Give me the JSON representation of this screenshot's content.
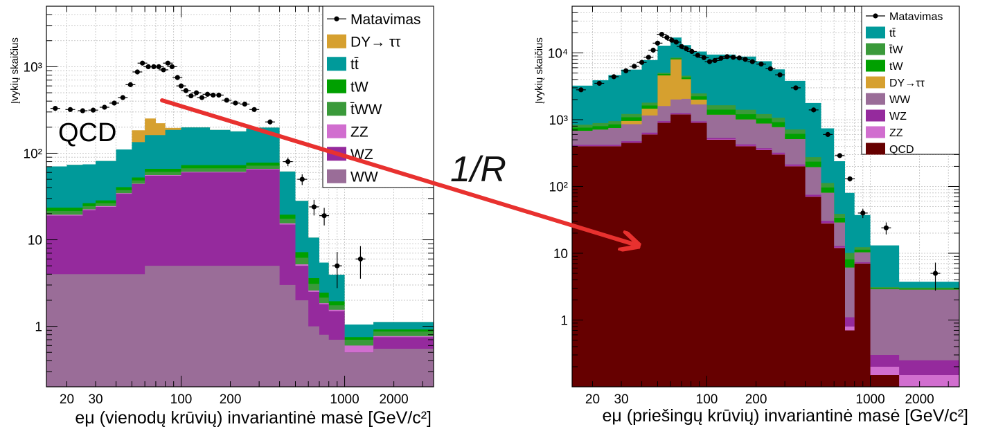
{
  "annotation": {
    "ratio_label": "1/R"
  },
  "chart_data": [
    {
      "type": "area",
      "stacked": true,
      "scale": {
        "x": "log",
        "y": "log"
      },
      "xlim": [
        15,
        3500
      ],
      "ylim": [
        0.2,
        5000
      ],
      "grid": true,
      "xlabel": "eμ (vienodų krūvių) invariantinė masė [GeV/c²]",
      "ylabel": "Įvykių skaičius",
      "xtick_labels": [
        "20",
        "30",
        "100",
        "200",
        "1000",
        "2000"
      ],
      "xtick_values": [
        20,
        30,
        100,
        200,
        1000,
        2000
      ],
      "ytick_labels": [
        "1",
        "10",
        "10²",
        "10³"
      ],
      "ytick_values": [
        1,
        10,
        100,
        1000
      ],
      "legend_position": "top-right",
      "inner_label": "QCD",
      "bin_edges": [
        15,
        20,
        25,
        30,
        40,
        50,
        60,
        70,
        80,
        100,
        150,
        200,
        250,
        300,
        400,
        500,
        600,
        700,
        800,
        1000,
        1500,
        3500
      ],
      "legend": [
        {
          "label": "Matavimas",
          "kind": "marker"
        },
        {
          "label": "DY→ ττ",
          "series": "DY→ττ"
        },
        {
          "label": "tt̄",
          "series": "tt̄"
        },
        {
          "label": "tW",
          "series": "tW"
        },
        {
          "label": "t̄WW",
          "series": "t̄WW"
        },
        {
          "label": "ZZ",
          "series": "ZZ"
        },
        {
          "label": "WZ",
          "series": "WZ"
        },
        {
          "label": "WW",
          "series": "WW"
        }
      ],
      "series": [
        {
          "name": "WW",
          "color": "#9a6d98",
          "values": [
            4,
            4,
            4,
            4,
            4,
            4,
            5,
            5,
            5,
            5,
            5,
            5,
            5,
            5,
            3,
            2,
            1,
            0.8,
            0.7,
            0.5,
            0.55
          ]
        },
        {
          "name": "WZ",
          "color": "#952a9d",
          "values": [
            15,
            15,
            18,
            20,
            30,
            40,
            50,
            50,
            50,
            55,
            55,
            55,
            60,
            60,
            12,
            3,
            1.5,
            1,
            0.8,
            0,
            0.2
          ]
        },
        {
          "name": "ZZ",
          "color": "#d16ecf",
          "values": [
            0.5,
            0.5,
            0.5,
            0.5,
            0.5,
            0.5,
            1,
            1,
            1,
            1,
            1,
            1,
            1,
            1,
            0.5,
            0.2,
            0.1,
            0.05,
            0.05,
            0.1,
            0.02
          ]
        },
        {
          "name": "t̄WW",
          "color": "#3a9a3a",
          "values": [
            2,
            2,
            2,
            2,
            3,
            4,
            5,
            5,
            5,
            6,
            6,
            6,
            6,
            6,
            2,
            1,
            0.5,
            0.3,
            0.2,
            0.1,
            0.1
          ]
        },
        {
          "name": "tW",
          "color": "#00a000",
          "values": [
            2,
            2,
            2,
            2,
            3,
            4,
            5,
            5,
            5,
            6,
            6,
            6,
            6,
            6,
            2,
            1,
            0.5,
            0.3,
            0.2,
            0.05,
            0.05
          ]
        },
        {
          "name": "tt̄",
          "color": "#009a9a",
          "values": [
            47,
            50,
            48,
            53,
            70,
            82,
            96,
            96,
            120,
            126,
            113,
            106,
            115,
            120,
            42,
            21,
            7,
            3,
            2,
            0.3,
            0.2
          ]
        },
        {
          "name": "DY→ττ",
          "color": "#d6a02f",
          "values": [
            0,
            0,
            0,
            0,
            0,
            50,
            90,
            60,
            10,
            0,
            0,
            0,
            0,
            0,
            0,
            0,
            0,
            0,
            0,
            0,
            0
          ]
        }
      ],
      "points": [
        {
          "x": 17,
          "y": 330
        },
        {
          "x": 21,
          "y": 320
        },
        {
          "x": 25,
          "y": 310
        },
        {
          "x": 29,
          "y": 315
        },
        {
          "x": 34,
          "y": 340
        },
        {
          "x": 39,
          "y": 380
        },
        {
          "x": 44,
          "y": 440
        },
        {
          "x": 49,
          "y": 620
        },
        {
          "x": 54,
          "y": 870
        },
        {
          "x": 58,
          "y": 1100
        },
        {
          "x": 63,
          "y": 1000
        },
        {
          "x": 68,
          "y": 1000
        },
        {
          "x": 73,
          "y": 1000
        },
        {
          "x": 78,
          "y": 920
        },
        {
          "x": 83,
          "y": 1100
        },
        {
          "x": 88,
          "y": 1000
        },
        {
          "x": 95,
          "y": 750
        },
        {
          "x": 100,
          "y": 600
        },
        {
          "x": 107,
          "y": 530
        },
        {
          "x": 115,
          "y": 460
        },
        {
          "x": 124,
          "y": 500
        },
        {
          "x": 134,
          "y": 440
        },
        {
          "x": 145,
          "y": 480
        },
        {
          "x": 157,
          "y": 470
        },
        {
          "x": 170,
          "y": 470
        },
        {
          "x": 190,
          "y": 410
        },
        {
          "x": 215,
          "y": 380
        },
        {
          "x": 245,
          "y": 370
        },
        {
          "x": 280,
          "y": 320
        },
        {
          "x": 350,
          "y": 230
        },
        {
          "x": 450,
          "y": 80
        },
        {
          "x": 550,
          "y": 50
        },
        {
          "x": 650,
          "y": 24
        },
        {
          "x": 750,
          "y": 19
        },
        {
          "x": 900,
          "y": 5
        },
        {
          "x": 1250,
          "y": 6
        }
      ]
    },
    {
      "type": "area",
      "stacked": true,
      "scale": {
        "x": "log",
        "y": "log"
      },
      "xlim": [
        15,
        3500
      ],
      "ylim": [
        0.1,
        50000
      ],
      "grid": true,
      "xlabel": "eμ (priešingų krūvių) invariantinė masė [GeV/c²]",
      "ylabel": "Įvykių skaičius",
      "xtick_labels": [
        "20",
        "30",
        "100",
        "200",
        "1000",
        "2000"
      ],
      "xtick_values": [
        20,
        30,
        100,
        200,
        1000,
        2000
      ],
      "ytick_labels": [
        "1",
        "10",
        "10²",
        "10³",
        "10⁴"
      ],
      "ytick_values": [
        1,
        10,
        100,
        1000,
        10000
      ],
      "legend_position": "top-right",
      "bin_edges": [
        15,
        20,
        25,
        30,
        40,
        50,
        60,
        70,
        80,
        100,
        150,
        200,
        250,
        300,
        400,
        500,
        600,
        700,
        800,
        1000,
        1500,
        3500
      ],
      "legend": [
        {
          "label": "Matavimas",
          "kind": "marker"
        },
        {
          "label": "tt̄",
          "series": "tt̄"
        },
        {
          "label": "t̄W",
          "series": "t̄W"
        },
        {
          "label": "tW",
          "series": "tW"
        },
        {
          "label": "DY→ττ",
          "series": "DY→ττ"
        },
        {
          "label": "WW",
          "series": "WW"
        },
        {
          "label": "WZ",
          "series": "WZ"
        },
        {
          "label": "ZZ",
          "series": "ZZ"
        },
        {
          "label": "QCD",
          "series": "QCD"
        }
      ],
      "series": [
        {
          "name": "QCD",
          "color": "#660000",
          "values": [
            400,
            400,
            400,
            450,
            600,
            900,
            1200,
            1200,
            900,
            500,
            400,
            350,
            300,
            200,
            70,
            28,
            12,
            0.7,
            7,
            0.15,
            0.1
          ]
        },
        {
          "name": "ZZ",
          "color": "#d16ecf",
          "values": [
            5,
            5,
            5,
            5,
            8,
            10,
            10,
            10,
            10,
            8,
            6,
            5,
            5,
            3,
            1,
            0.5,
            0.2,
            0.1,
            0.1,
            0.05,
            0.05
          ]
        },
        {
          "name": "WZ",
          "color": "#952a9d",
          "values": [
            15,
            15,
            15,
            20,
            30,
            40,
            45,
            40,
            35,
            25,
            20,
            18,
            15,
            10,
            4,
            2,
            0.6,
            0.3,
            0.2,
            0.1,
            0.1
          ]
        },
        {
          "name": "WW",
          "color": "#9a6d98",
          "values": [
            260,
            290,
            330,
            380,
            520,
            650,
            750,
            800,
            750,
            650,
            580,
            500,
            450,
            300,
            120,
            50,
            16,
            5,
            3,
            2.6,
            2.6
          ]
        },
        {
          "name": "DY→ττ",
          "color": "#d6a02f",
          "values": [
            0,
            0,
            0,
            100,
            300,
            3000,
            6000,
            2000,
            300,
            0,
            0,
            0,
            0,
            0,
            0,
            0,
            0,
            0,
            0,
            0,
            0
          ]
        },
        {
          "name": "tW",
          "color": "#00a000",
          "values": [
            80,
            90,
            100,
            130,
            170,
            220,
            250,
            250,
            240,
            230,
            200,
            170,
            150,
            100,
            40,
            16,
            5,
            2,
            1,
            0.1,
            0.1
          ]
        },
        {
          "name": "t̄W",
          "color": "#3a9a3a",
          "values": [
            80,
            90,
            100,
            130,
            170,
            220,
            250,
            250,
            240,
            230,
            200,
            170,
            150,
            100,
            40,
            16,
            5,
            2,
            1,
            0.1,
            0.1
          ]
        },
        {
          "name": "tt̄",
          "color": "#009a9a",
          "values": [
            2400,
            3000,
            3700,
            4400,
            6000,
            7800,
            8500,
            8500,
            8000,
            7800,
            7400,
            6300,
            4600,
            3100,
            1500,
            630,
            200,
            70,
            25,
            10,
            0.7
          ]
        }
      ],
      "points": [
        {
          "x": 17,
          "y": 2800
        },
        {
          "x": 22,
          "y": 3500
        },
        {
          "x": 27,
          "y": 4400
        },
        {
          "x": 32,
          "y": 5400
        },
        {
          "x": 36,
          "y": 6300
        },
        {
          "x": 40,
          "y": 7200
        },
        {
          "x": 44,
          "y": 8600
        },
        {
          "x": 47,
          "y": 11000
        },
        {
          "x": 50,
          "y": 14000
        },
        {
          "x": 53,
          "y": 19000
        },
        {
          "x": 57,
          "y": 17000
        },
        {
          "x": 61,
          "y": 15500
        },
        {
          "x": 65,
          "y": 14500
        },
        {
          "x": 70,
          "y": 12500
        },
        {
          "x": 75,
          "y": 11500
        },
        {
          "x": 81,
          "y": 10500
        },
        {
          "x": 88,
          "y": 9200
        },
        {
          "x": 96,
          "y": 8500
        },
        {
          "x": 104,
          "y": 7400
        },
        {
          "x": 112,
          "y": 7700
        },
        {
          "x": 122,
          "y": 8300
        },
        {
          "x": 133,
          "y": 8800
        },
        {
          "x": 145,
          "y": 8600
        },
        {
          "x": 158,
          "y": 8400
        },
        {
          "x": 172,
          "y": 8000
        },
        {
          "x": 190,
          "y": 7400
        },
        {
          "x": 215,
          "y": 6800
        },
        {
          "x": 245,
          "y": 5800
        },
        {
          "x": 280,
          "y": 4700
        },
        {
          "x": 350,
          "y": 3000
        },
        {
          "x": 450,
          "y": 1400
        },
        {
          "x": 550,
          "y": 600
        },
        {
          "x": 650,
          "y": 290
        },
        {
          "x": 750,
          "y": 130
        },
        {
          "x": 900,
          "y": 40
        },
        {
          "x": 1250,
          "y": 24
        },
        {
          "x": 2500,
          "y": 5
        }
      ]
    }
  ]
}
